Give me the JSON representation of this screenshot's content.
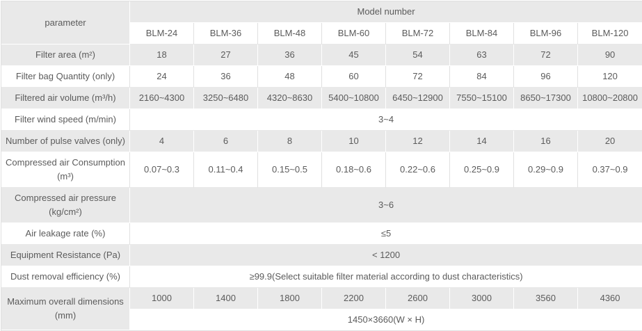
{
  "colors": {
    "stripe_gray": "#e9e9e9",
    "text_gray": "#5b5b5b",
    "border_light": "#e0e0e0"
  },
  "header": {
    "parameter_label": "parameter",
    "model_number_label": "Model number",
    "models": [
      "BLM-24",
      "BLM-36",
      "BLM-48",
      "BLM-60",
      "BLM-72",
      "BLM-84",
      "BLM-96",
      "BLM-120"
    ]
  },
  "rows": [
    {
      "label": "Filter area (m²)",
      "values": [
        "18",
        "27",
        "36",
        "45",
        "54",
        "63",
        "72",
        "90"
      ]
    },
    {
      "label": "Filter bag Quantity (only)",
      "values": [
        "24",
        "36",
        "48",
        "60",
        "72",
        "84",
        "96",
        "120"
      ]
    },
    {
      "label": "Filtered air volume (m³/h)",
      "values": [
        "2160~4300",
        "3250~6480",
        "4320~8630",
        "5400~10800",
        "6450~12900",
        "7550~15100",
        "8650~17300",
        "10800~20800"
      ]
    },
    {
      "label": "Filter wind speed (m/min)",
      "span": "3~4"
    },
    {
      "label": "Number of pulse valves (only)",
      "values": [
        "4",
        "6",
        "8",
        "10",
        "12",
        "14",
        "16",
        "20"
      ]
    },
    {
      "label": "Compressed air Consumption",
      "label2": "(m³)",
      "values": [
        "0.07~0.3",
        "0.11~0.4",
        "0.15~0.5",
        "0.18~0.6",
        "0.22~0.6",
        "0.25~0.9",
        "0.29~0.9",
        "0.37~0.9"
      ]
    },
    {
      "label": "Compressed air pressure",
      "label2": "(kg/cm²)",
      "span": "3~6"
    },
    {
      "label": "Air leakage rate (%)",
      "span": "≤5"
    },
    {
      "label": "Equipment Resistance (Pa)",
      "span": "< 1200"
    },
    {
      "label": "Dust removal efficiency (%)",
      "span": "≥99.9(Select suitable filter material according to dust characteristics)"
    },
    {
      "label": "Maximum overall dimensions",
      "label2": "(mm)",
      "values": [
        "1000",
        "1400",
        "1800",
        "2200",
        "2600",
        "3000",
        "3560",
        "4360"
      ],
      "span": "1450×3660(W  ×  H)"
    }
  ]
}
